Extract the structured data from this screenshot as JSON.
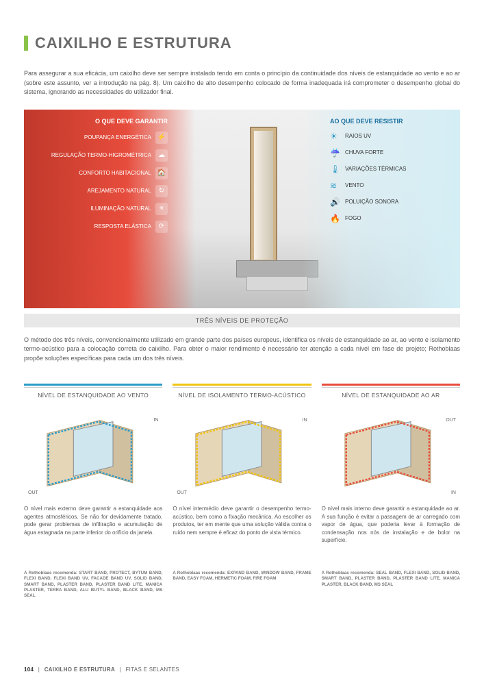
{
  "title": "CAIXILHO E ESTRUTURA",
  "intro": "Para assegurar a sua eficácia, um caixilho deve ser sempre instalado tendo em conta o princípio da continuidade dos níveis de estanquidade ao vento e ao ar (sobre este assunto, ver a introdução na pág. 8). Um caixilho de alto desempenho colocado de forma inadequada irá comprometer o desempenho global do sistema, ignorando as necessidades do utilizador final.",
  "ig": {
    "left_title": "O QUE DEVE GARANTIR",
    "left_items": [
      {
        "label": "POUPANÇA ENERGÉTICA",
        "icon": "⚡"
      },
      {
        "label": "REGULAÇÃO TERMO-HIGROMÉTRICA",
        "icon": "☁"
      },
      {
        "label": "CONFORTO HABITACIONAL",
        "icon": "🏠"
      },
      {
        "label": "AREJAMENTO NATURAL",
        "icon": "↻"
      },
      {
        "label": "ILUMINAÇÃO NATURAL",
        "icon": "☀"
      },
      {
        "label": "RESPOSTA ELÁSTICA",
        "icon": "⟳"
      }
    ],
    "right_title": "AO QUE DEVE RESISTIR",
    "right_items": [
      {
        "label": "RAIOS UV",
        "icon": "☀"
      },
      {
        "label": "CHUVA FORTE",
        "icon": "☔"
      },
      {
        "label": "VARIAÇÕES TÉRMICAS",
        "icon": "🌡"
      },
      {
        "label": "VENTO",
        "icon": "≋"
      },
      {
        "label": "POLUIÇÃO SONORA",
        "icon": "🔊"
      },
      {
        "label": "FOGO",
        "icon": "🔥"
      }
    ]
  },
  "section_label": "TRÊS NÍVEIS DE PROTEÇÃO",
  "section_text": "O método dos três níveis, convencionalmente utilizado em grande parte dos países europeus, identifica os níveis de estanquidade ao ar, ao vento e isolamento termo-acústico para a colocação correta do caixilho. Para obter o maior rendimento é necessário ter atenção a cada nível em fase de projeto; Rothoblaas propõe soluções específicas para cada um dos três níveis.",
  "cols": [
    {
      "title": "NÍVEL DE ESTANQUIDADE AO VENTO",
      "color": "#2b9bc9",
      "in_pos": "top-right",
      "out_pos": "bottom-left",
      "text": "O nível mais externo deve garantir a estanquidade aos agentes atmosféricos. Se não for devidamente tratado, pode gerar problemas de infiltração e acumulação de água estagnada na parte inferior do orifício da janela.",
      "rec": "A Rothoblaas recomenda: START BAND, PROTECT, BYTUM BAND, FLEXI BAND, FLEXI BAND UV, FACADE BAND UV, SOLID BAND, SMART BAND, PLASTER BAND, PLASTER BAND LITE, MANICA PLASTER, TERRA BAND, ALU BUTYL BAND, BLACK BAND, MS SEAL"
    },
    {
      "title": "NÍVEL DE ISOLAMENTO TERMO-ACÚSTICO",
      "color": "#f1c40f",
      "in_pos": "top-right",
      "out_pos": "bottom-left",
      "text": "O nível intermédio deve garantir o desempenho termo-acústico, bem como a fixação mecânica. Ao escolher os produtos, ter em mente que uma solução válida contra o ruído nem sempre é eficaz do ponto de vista térmico.",
      "rec": "A Rothoblaas recomenda: EXPAND BAND, WINDOW BAND, FRAME BAND, EASY FOAM, HERMETIC FOAM, FIRE FOAM"
    },
    {
      "title": "NÍVEL DE ESTANQUIDADE AO AR",
      "color": "#e74c3c",
      "in_pos": "bottom-right",
      "out_pos": "top-right",
      "text": "O nível mais interno deve garantir a estanquidade ao ar. A sua função é evitar a passagem de ar carregado com vapor de água, que poderia levar à formação de condensação nos nós de instalação e de bolor na superfície.",
      "rec": "A Rothoblaas recomenda: SEAL BAND, FLEXI BAND, SOLID BAND, SMART BAND, PLASTER BAND, PLASTER BAND LITE, MANICA PLASTER, BLACK BAND, MS SEAL"
    }
  ],
  "labels": {
    "in": "IN",
    "out": "OUT"
  },
  "footer": {
    "page": "104",
    "crumb1": "CAIXILHO E ESTRUTURA",
    "crumb2": "FITAS E SELANTES"
  }
}
